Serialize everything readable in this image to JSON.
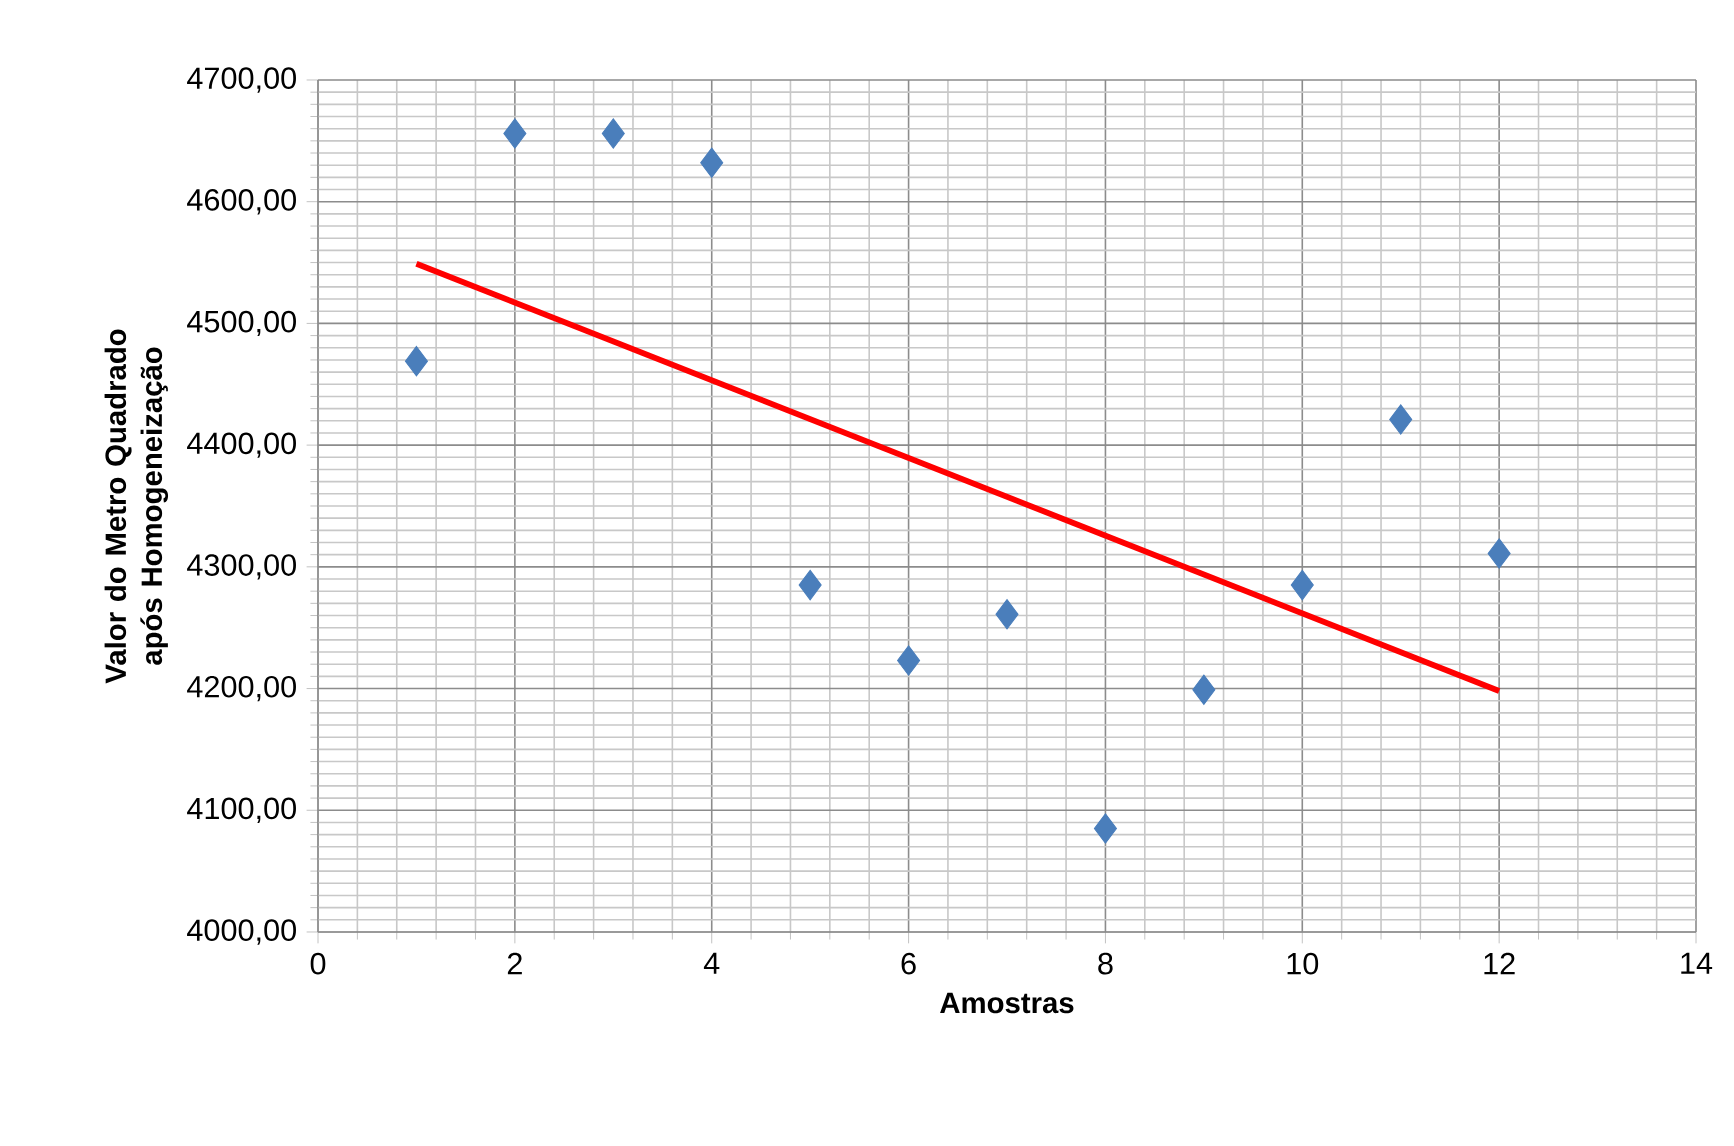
{
  "chart_data": {
    "type": "scatter",
    "xlabel": "Amostras",
    "ylabel": "Valor do Metro Quadrado após Homogeneização",
    "xlim": [
      0,
      14
    ],
    "xticks": [
      0,
      2,
      4,
      6,
      8,
      10,
      12,
      14
    ],
    "ylim": [
      4000,
      4700
    ],
    "yticks": [
      {
        "value": 4000,
        "label": "4000,00"
      },
      {
        "value": 4100,
        "label": "4100,00"
      },
      {
        "value": 4200,
        "label": "4200,00"
      },
      {
        "value": 4300,
        "label": "4300,00"
      },
      {
        "value": 4400,
        "label": "4400,00"
      },
      {
        "value": 4500,
        "label": "4500,00"
      },
      {
        "value": 4600,
        "label": "4600,00"
      },
      {
        "value": 4700,
        "label": "4700,00"
      }
    ],
    "grid": true,
    "series": [
      {
        "marker": "diamond",
        "color": "#4a7ebb",
        "x": [
          1,
          2,
          3,
          4,
          5,
          6,
          7,
          8,
          9,
          10,
          11,
          12
        ],
        "values": [
          4469,
          4656,
          4656,
          4632,
          4285,
          4223,
          4261,
          4085,
          4199,
          4285,
          4421,
          4311
        ]
      },
      {
        "type": "line",
        "marker": "none",
        "color": "#ff0000",
        "x": [
          1,
          12
        ],
        "values": [
          4549,
          4198
        ]
      }
    ]
  }
}
